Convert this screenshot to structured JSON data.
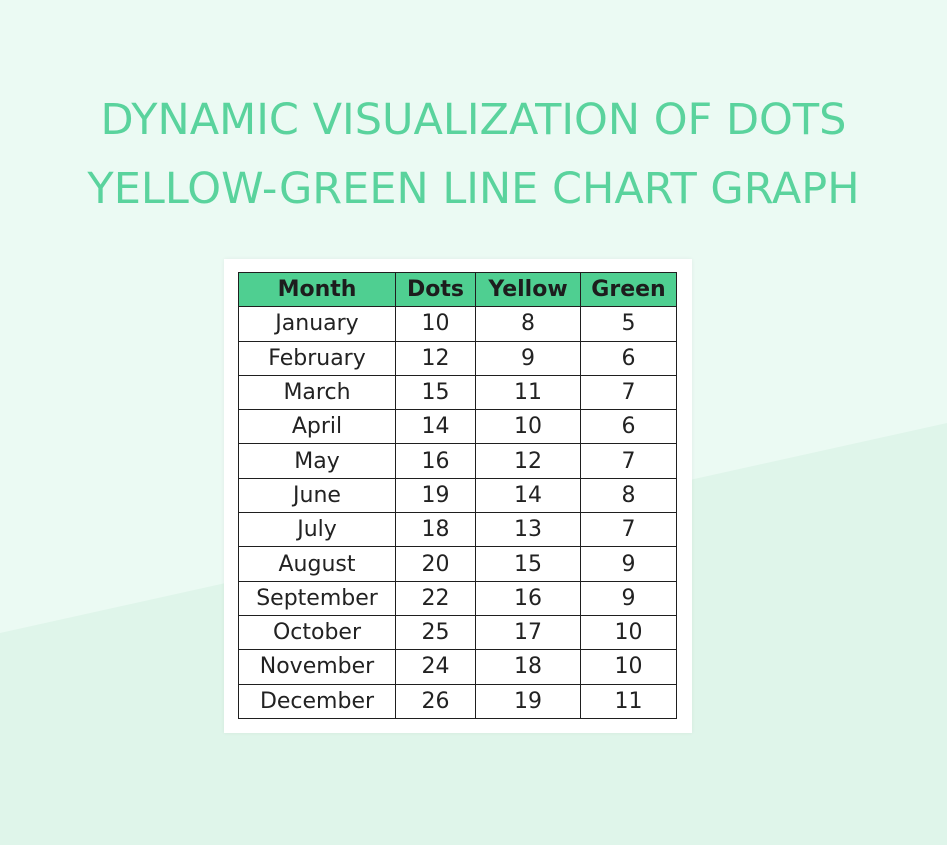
{
  "title": {
    "line1": "DYNAMIC VISUALIZATION OF DOTS",
    "line2": "YELLOW-GREEN LINE CHART GRAPH"
  },
  "colors": {
    "title": "#5ad39d",
    "header_bg": "#4fcf91",
    "page_bg": "#ebfaf3",
    "page_bg_lower": "#dff5ea"
  },
  "table": {
    "headers": [
      "Month",
      "Dots",
      "Yellow",
      "Green"
    ],
    "rows": [
      [
        "January",
        "10",
        "8",
        "5"
      ],
      [
        "February",
        "12",
        "9",
        "6"
      ],
      [
        "March",
        "15",
        "11",
        "7"
      ],
      [
        "April",
        "14",
        "10",
        "6"
      ],
      [
        "May",
        "16",
        "12",
        "7"
      ],
      [
        "June",
        "19",
        "14",
        "8"
      ],
      [
        "July",
        "18",
        "13",
        "7"
      ],
      [
        "August",
        "20",
        "15",
        "9"
      ],
      [
        "September",
        "22",
        "16",
        "9"
      ],
      [
        "October",
        "25",
        "17",
        "10"
      ],
      [
        "November",
        "24",
        "18",
        "10"
      ],
      [
        "December",
        "26",
        "19",
        "11"
      ]
    ]
  }
}
